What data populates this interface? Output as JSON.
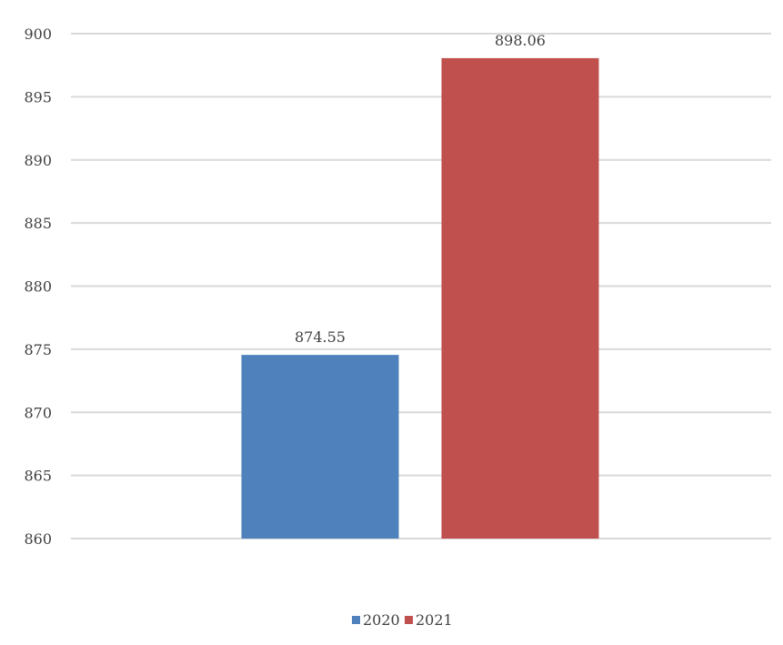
{
  "chart_data": {
    "type": "bar",
    "categories": [
      ""
    ],
    "series": [
      {
        "name": "2020",
        "values": [
          874.55
        ],
        "color": "#4f81bd"
      },
      {
        "name": "2021",
        "values": [
          898.06
        ],
        "color": "#c0504d"
      }
    ],
    "data_labels": [
      "874.55",
      "898.06"
    ],
    "yticks": [
      "860",
      "865",
      "870",
      "875",
      "880",
      "885",
      "890",
      "895",
      "900"
    ],
    "ylim": [
      860,
      900
    ],
    "grid": true,
    "legend_position": "bottom",
    "title": "",
    "xlabel": "",
    "ylabel": ""
  }
}
